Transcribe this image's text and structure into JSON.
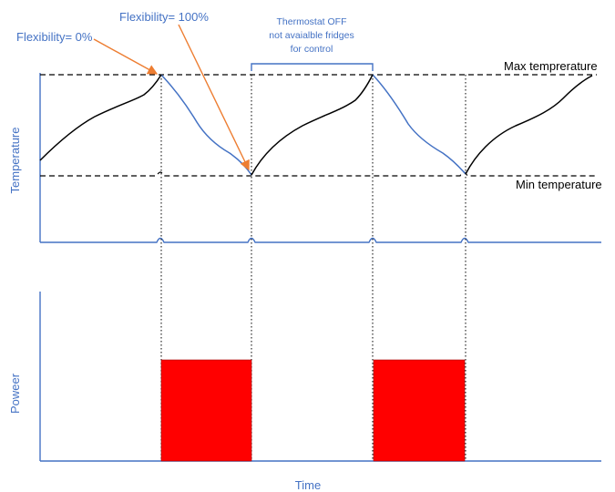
{
  "labels": {
    "flex0": "Flexibility= 0%",
    "flex100": "Flexibility= 100%",
    "thermostat_line1": "Thermostat OFF",
    "thermostat_line2": "not avaialble fridges",
    "thermostat_line3": "for control",
    "max_temp": "Max temprerature",
    "min_temp": "Min temperature",
    "y_temperature": "Temperature",
    "y_power": "Poweer",
    "x_time": "Time"
  },
  "colors": {
    "axis": "#4472C4",
    "heating_curve": "#000000",
    "cooling_curve": "#4472C4",
    "annotation_arrow": "#ED7D31",
    "power_block": "#FF0000"
  }
}
